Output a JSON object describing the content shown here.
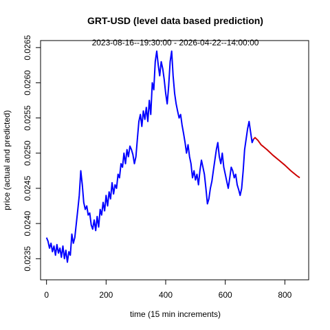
{
  "chart_data": {
    "type": "line",
    "title": "GRT-USD (level data based prediction)",
    "subtitle": "2023-08-16--19:30:00  -  2026-04-22--14:00:00",
    "xlabel": "time (15 min increments)",
    "ylabel": "price (actual and predicted)",
    "xlim": [
      -20,
      880
    ],
    "ylim": [
      0.0232,
      0.0266
    ],
    "xticks": [
      0,
      200,
      400,
      600,
      800
    ],
    "yticks": [
      0.0235,
      0.024,
      0.0245,
      0.025,
      0.0255,
      0.026,
      0.0265
    ],
    "ytick_labels": [
      "0.0235",
      "0.0240",
      "0.0245",
      "0.0250",
      "0.0255",
      "0.0260",
      "0.0265"
    ],
    "grid": false,
    "series": [
      {
        "color": "#0000ff",
        "points": [
          [
            0,
            0.0238
          ],
          [
            5,
            0.02375
          ],
          [
            10,
            0.02365
          ],
          [
            15,
            0.02372
          ],
          [
            20,
            0.0236
          ],
          [
            25,
            0.02368
          ],
          [
            30,
            0.02355
          ],
          [
            35,
            0.0237
          ],
          [
            40,
            0.02358
          ],
          [
            45,
            0.02365
          ],
          [
            50,
            0.02352
          ],
          [
            55,
            0.02368
          ],
          [
            60,
            0.0235
          ],
          [
            65,
            0.02362
          ],
          [
            70,
            0.02345
          ],
          [
            75,
            0.0236
          ],
          [
            80,
            0.02355
          ],
          [
            85,
            0.02385
          ],
          [
            90,
            0.02372
          ],
          [
            95,
            0.0238
          ],
          [
            100,
            0.024
          ],
          [
            105,
            0.0242
          ],
          [
            110,
            0.0244
          ],
          [
            115,
            0.02475
          ],
          [
            120,
            0.02455
          ],
          [
            125,
            0.0243
          ],
          [
            130,
            0.0242
          ],
          [
            135,
            0.02425
          ],
          [
            140,
            0.02412
          ],
          [
            145,
            0.02415
          ],
          [
            150,
            0.02398
          ],
          [
            155,
            0.02392
          ],
          [
            160,
            0.02405
          ],
          [
            165,
            0.0239
          ],
          [
            170,
            0.0241
          ],
          [
            175,
            0.02395
          ],
          [
            180,
            0.0242
          ],
          [
            185,
            0.02412
          ],
          [
            190,
            0.0243
          ],
          [
            195,
            0.02418
          ],
          [
            200,
            0.0244
          ],
          [
            205,
            0.02425
          ],
          [
            210,
            0.02445
          ],
          [
            215,
            0.02435
          ],
          [
            220,
            0.02458
          ],
          [
            225,
            0.02442
          ],
          [
            230,
            0.02455
          ],
          [
            235,
            0.0245
          ],
          [
            240,
            0.0247
          ],
          [
            245,
            0.02465
          ],
          [
            250,
            0.02485
          ],
          [
            255,
            0.0248
          ],
          [
            260,
            0.025
          ],
          [
            265,
            0.02485
          ],
          [
            270,
            0.02505
          ],
          [
            275,
            0.02495
          ],
          [
            280,
            0.0251
          ],
          [
            285,
            0.02505
          ],
          [
            290,
            0.02498
          ],
          [
            295,
            0.02485
          ],
          [
            300,
            0.02495
          ],
          [
            305,
            0.0252
          ],
          [
            310,
            0.02545
          ],
          [
            315,
            0.02555
          ],
          [
            320,
            0.02538
          ],
          [
            325,
            0.0256
          ],
          [
            330,
            0.02548
          ],
          [
            335,
            0.02565
          ],
          [
            340,
            0.02545
          ],
          [
            345,
            0.02575
          ],
          [
            350,
            0.02555
          ],
          [
            355,
            0.026
          ],
          [
            360,
            0.0259
          ],
          [
            365,
            0.0263
          ],
          [
            370,
            0.02645
          ],
          [
            375,
            0.02625
          ],
          [
            380,
            0.0261
          ],
          [
            385,
            0.0263
          ],
          [
            390,
            0.0262
          ],
          [
            395,
            0.02605
          ],
          [
            400,
            0.02585
          ],
          [
            405,
            0.0257
          ],
          [
            410,
            0.02595
          ],
          [
            415,
            0.0263
          ],
          [
            420,
            0.02645
          ],
          [
            425,
            0.0261
          ],
          [
            430,
            0.02585
          ],
          [
            435,
            0.0257
          ],
          [
            440,
            0.0256
          ],
          [
            445,
            0.0255
          ],
          [
            450,
            0.02555
          ],
          [
            455,
            0.0254
          ],
          [
            460,
            0.02528
          ],
          [
            465,
            0.02515
          ],
          [
            470,
            0.025
          ],
          [
            475,
            0.02512
          ],
          [
            480,
            0.02495
          ],
          [
            485,
            0.02485
          ],
          [
            490,
            0.02465
          ],
          [
            495,
            0.02475
          ],
          [
            500,
            0.02462
          ],
          [
            505,
            0.0247
          ],
          [
            510,
            0.02455
          ],
          [
            515,
            0.02475
          ],
          [
            520,
            0.0249
          ],
          [
            525,
            0.0248
          ],
          [
            530,
            0.0247
          ],
          [
            535,
            0.0245
          ],
          [
            540,
            0.02428
          ],
          [
            545,
            0.02435
          ],
          [
            550,
            0.0245
          ],
          [
            555,
            0.0246
          ],
          [
            560,
            0.02475
          ],
          [
            565,
            0.0249
          ],
          [
            570,
            0.02505
          ],
          [
            575,
            0.02515
          ],
          [
            580,
            0.02495
          ],
          [
            585,
            0.02485
          ],
          [
            590,
            0.025
          ],
          [
            595,
            0.0248
          ],
          [
            600,
            0.0247
          ],
          [
            605,
            0.0246
          ],
          [
            610,
            0.0245
          ],
          [
            615,
            0.02465
          ],
          [
            620,
            0.0248
          ],
          [
            625,
            0.02475
          ],
          [
            630,
            0.02465
          ],
          [
            635,
            0.0247
          ],
          [
            640,
            0.02455
          ],
          [
            645,
            0.02448
          ],
          [
            650,
            0.0244
          ],
          [
            655,
            0.0245
          ],
          [
            660,
            0.02475
          ],
          [
            665,
            0.02505
          ],
          [
            670,
            0.0252
          ],
          [
            675,
            0.02535
          ],
          [
            680,
            0.02545
          ],
          [
            685,
            0.0253
          ],
          [
            690,
            0.02515
          ],
          [
            695,
            0.0252
          ]
        ]
      },
      {
        "color": "#cd0000",
        "points": [
          [
            695,
            0.0252
          ],
          [
            700,
            0.02522
          ],
          [
            710,
            0.02518
          ],
          [
            720,
            0.02512
          ],
          [
            740,
            0.02505
          ],
          [
            760,
            0.02497
          ],
          [
            780,
            0.0249
          ],
          [
            800,
            0.02483
          ],
          [
            820,
            0.02475
          ],
          [
            840,
            0.02468
          ],
          [
            850,
            0.02465
          ]
        ]
      }
    ]
  }
}
